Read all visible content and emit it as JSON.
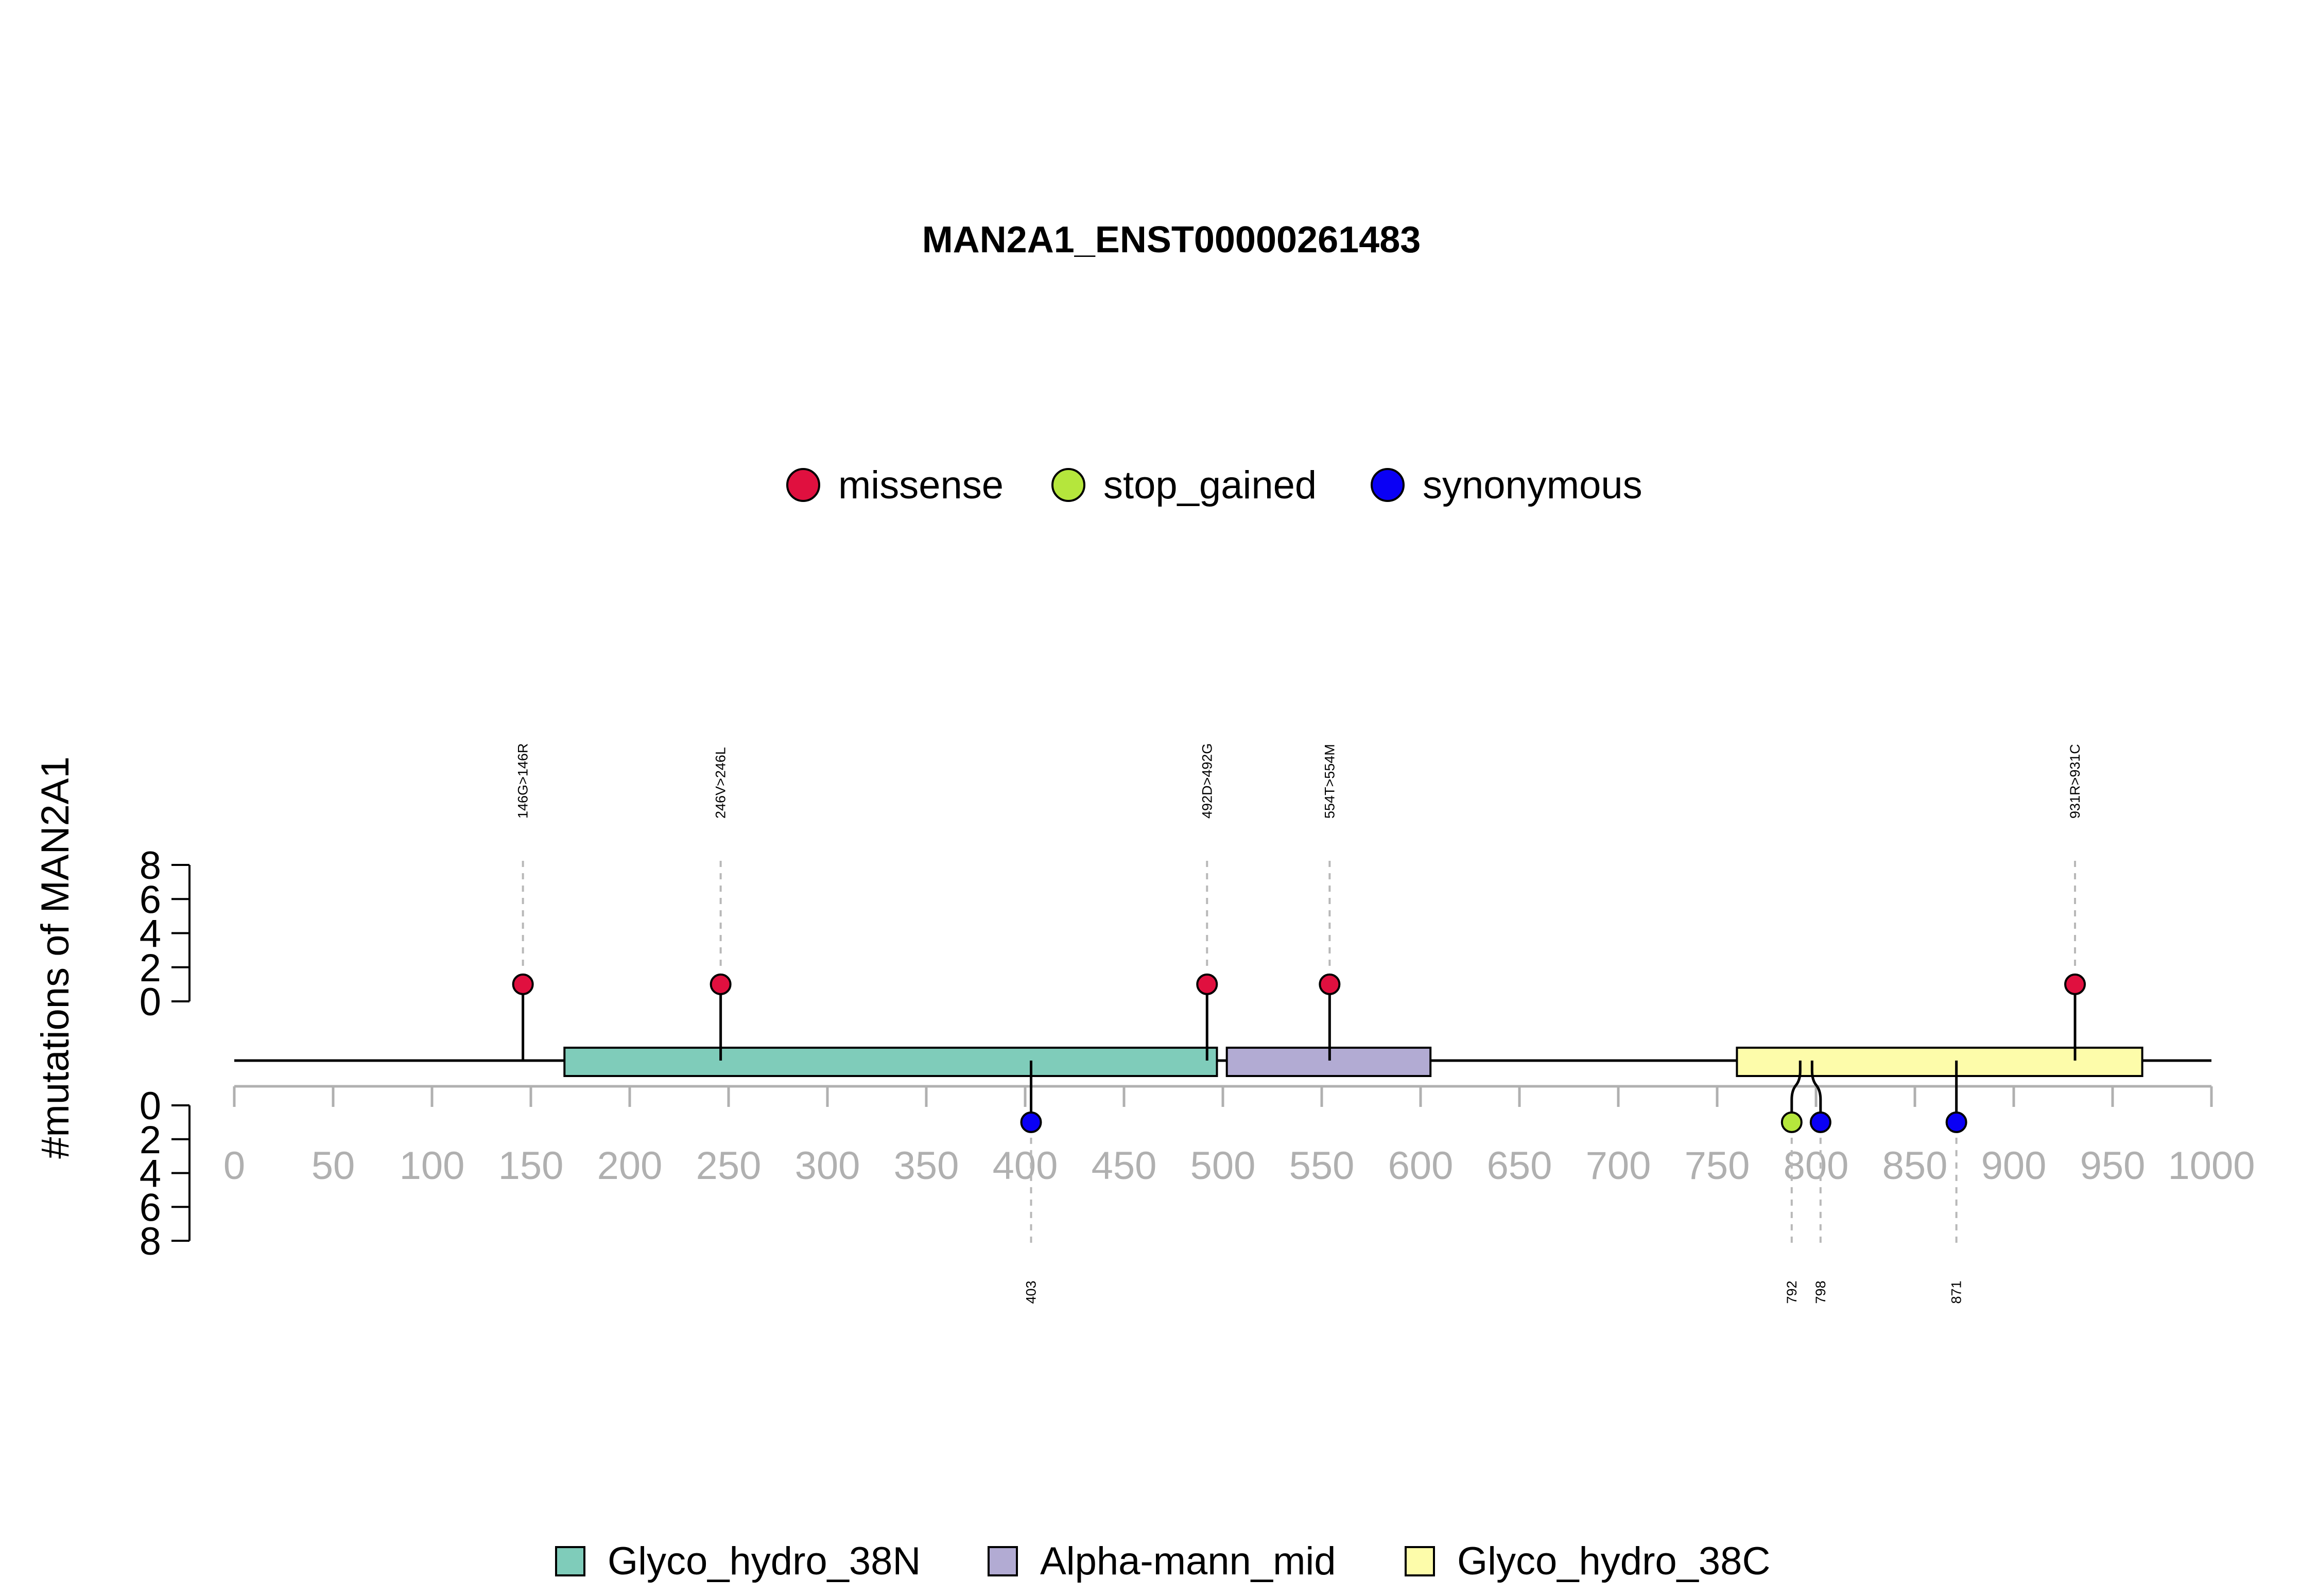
{
  "chart_data": {
    "type": "lollipop",
    "title": "MAN2A1_ENST00000261483",
    "ylabel": "#mutations of MAN2A1",
    "xlim": [
      0,
      1000
    ],
    "x_ticks": [
      0,
      50,
      100,
      150,
      200,
      250,
      300,
      350,
      400,
      450,
      500,
      550,
      600,
      650,
      700,
      750,
      800,
      850,
      900,
      950,
      1000
    ],
    "y_ticks": [
      0,
      2,
      4,
      6,
      8
    ],
    "ylim": [
      0,
      8
    ],
    "protein_length": 1000,
    "legend_position": "top-center",
    "mutation_types": [
      {
        "name": "missense",
        "color": "#e0103f"
      },
      {
        "name": "stop_gained",
        "color": "#b5e63c"
      },
      {
        "name": "synonymous",
        "color": "#0a00f5"
      }
    ],
    "domains": [
      {
        "name": "Glyco_hydro_38N",
        "start": 167,
        "end": 497,
        "color": "#7fccba"
      },
      {
        "name": "Alpha-mann_mid",
        "start": 502,
        "end": 605,
        "color": "#b2abd3"
      },
      {
        "name": "Glyco_hydro_38C",
        "start": 760,
        "end": 965,
        "color": "#fdfcaa"
      }
    ],
    "domain_legend_position": "bottom-center",
    "mutations_top": [
      {
        "pos": 146,
        "label": "146G>146R",
        "type": "missense",
        "count": 1
      },
      {
        "pos": 246,
        "label": "246V>246L",
        "type": "missense",
        "count": 1
      },
      {
        "pos": 492,
        "label": "492D>492G",
        "type": "missense",
        "count": 1
      },
      {
        "pos": 554,
        "label": "554T>554M",
        "type": "missense",
        "count": 1
      },
      {
        "pos": 931,
        "label": "931R>931C",
        "type": "missense",
        "count": 1
      }
    ],
    "mutations_bottom": [
      {
        "pos": 403,
        "label": "403",
        "type": "synonymous",
        "count": 1
      },
      {
        "pos": 792,
        "label": "792",
        "type": "stop_gained",
        "count": 1
      },
      {
        "pos": 798,
        "label": "798",
        "type": "synonymous",
        "count": 1
      },
      {
        "pos": 871,
        "label": "871",
        "type": "synonymous",
        "count": 1
      }
    ]
  }
}
